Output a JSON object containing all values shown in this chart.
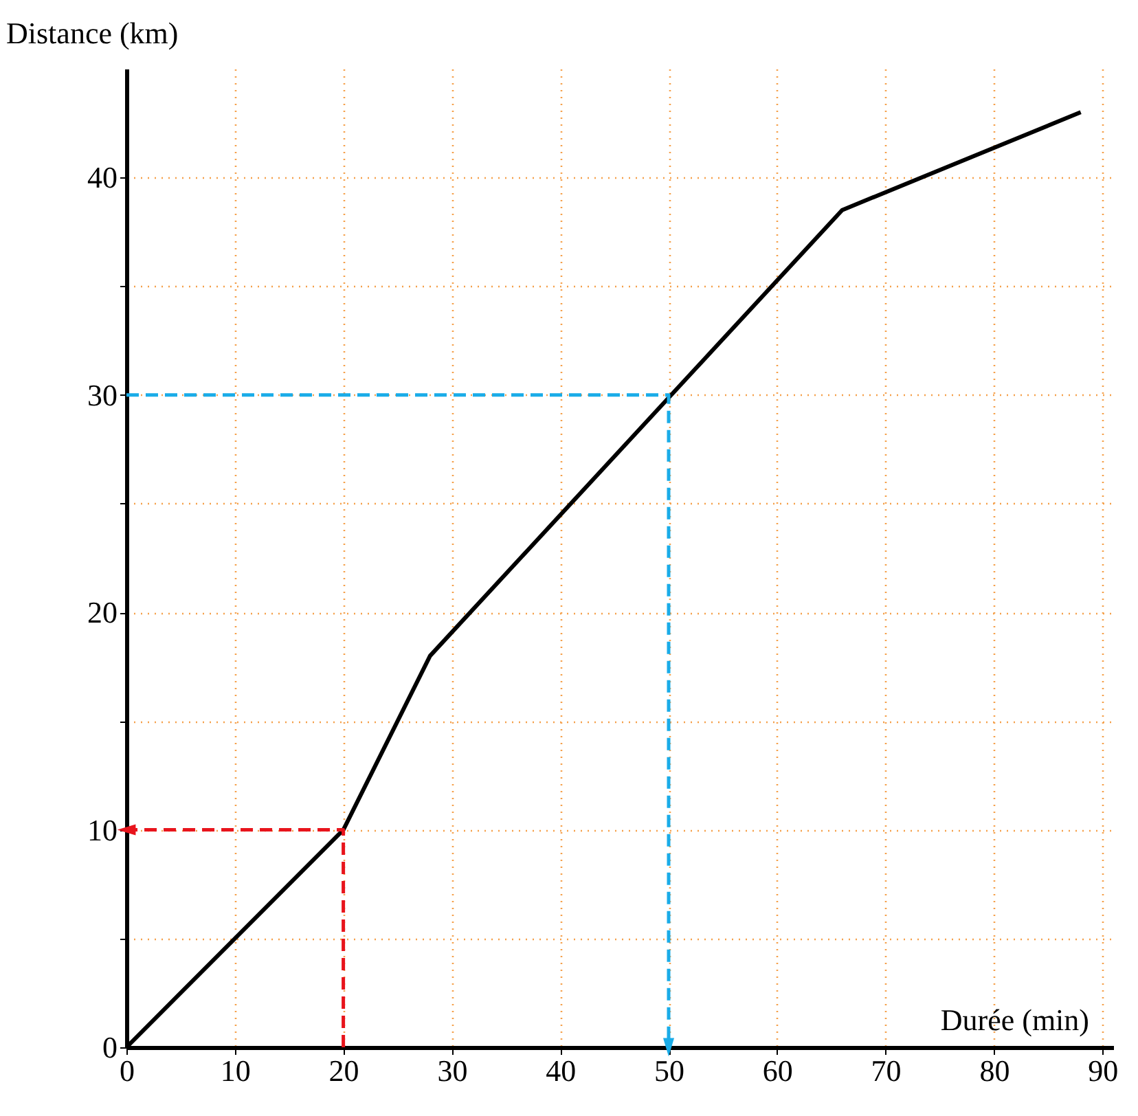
{
  "chart_data": {
    "type": "line",
    "xlabel": "Durée (min)",
    "ylabel": "Distance (km)",
    "xlim": [
      0,
      91
    ],
    "ylim": [
      0,
      45
    ],
    "xticks": [
      0,
      10,
      20,
      30,
      40,
      50,
      60,
      70,
      80,
      90
    ],
    "yticks": [
      0,
      {
        "value": 5,
        "label": null
      },
      10,
      {
        "value": 15,
        "label": null
      },
      20,
      {
        "value": 25,
        "label": null
      },
      30,
      {
        "value": 35,
        "label": null
      },
      40
    ],
    "grid": true,
    "marker": "none",
    "series": [
      {
        "color": "#000000",
        "x": [
          0,
          20,
          28,
          66,
          88
        ],
        "values": [
          0,
          10,
          18,
          38.5,
          43
        ],
        "line_style": "solid"
      },
      {
        "color": "#e8141c",
        "x": [
          20,
          20,
          0
        ],
        "values": [
          0,
          10,
          10
        ],
        "line_style": "dashed"
      },
      {
        "color": "#1aace8",
        "x": [
          0,
          50,
          50
        ],
        "values": [
          30,
          30,
          0
        ],
        "line_style": "dashed"
      }
    ]
  }
}
